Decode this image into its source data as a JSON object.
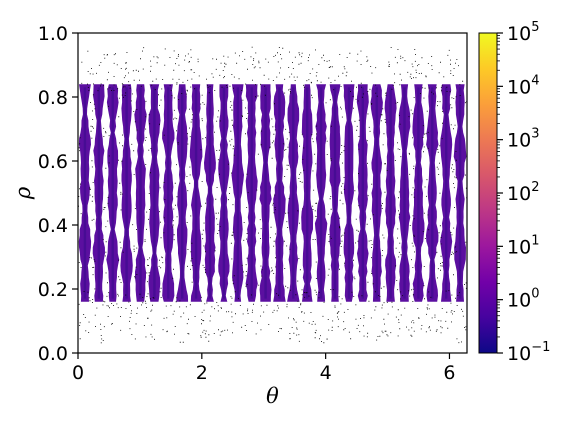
{
  "chart_data": {
    "type": "heatmap",
    "title": "",
    "xlabel": "θ",
    "ylabel": "ρ",
    "xlim": [
      0,
      6.2832
    ],
    "ylim": [
      0,
      1
    ],
    "xticks": [
      0,
      2,
      4,
      6
    ],
    "yticks": [
      0.0,
      0.2,
      0.4,
      0.6,
      0.8,
      1.0
    ],
    "xtick_labels": [
      "0",
      "2",
      "4",
      "6"
    ],
    "ytick_labels": [
      "0.0",
      "0.2",
      "0.4",
      "0.6",
      "0.8",
      "1.0"
    ],
    "grid": false,
    "colorbar": {
      "scale": "log",
      "colormap": "plasma",
      "range": [
        0.1,
        100000
      ],
      "tick_exponents": [
        -1,
        0,
        1,
        2,
        3,
        4,
        5
      ],
      "tick_base": "10"
    },
    "structure": {
      "vertical_bands": 28,
      "band_rho_range": [
        0.16,
        0.84
      ],
      "band_level": 1,
      "point_rho_range": [
        0.03,
        0.96
      ],
      "outer_scatter_bands": [
        [
          0.03,
          0.2
        ],
        [
          0.8,
          0.96
        ]
      ],
      "point_color": "#000000"
    },
    "colors": {
      "colormap_stops": [
        "#0d0887",
        "#46039f",
        "#7201a8",
        "#9c179e",
        "#bd3786",
        "#d8576b",
        "#ed7953",
        "#fb9f3a",
        "#fdca26",
        "#f0f921"
      ],
      "band_color": "#5b0fa0",
      "band_color_dark": "#3a0a8c"
    }
  }
}
